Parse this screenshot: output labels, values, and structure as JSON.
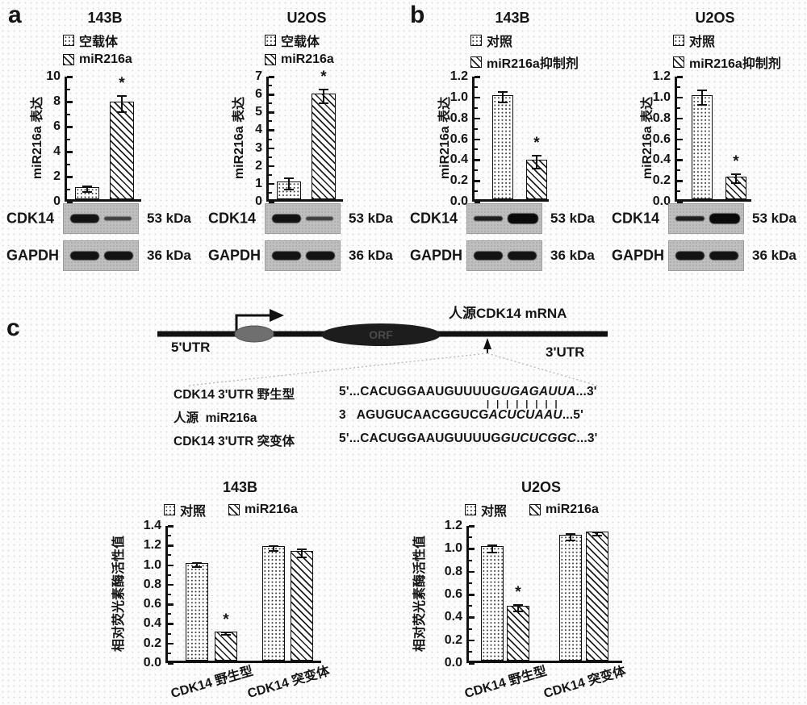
{
  "figure": {
    "panel_a": {
      "label": "a",
      "blots": [
        {
          "rows": [
            {
              "protein": "CDK14",
              "kda": "53 kDa",
              "lanes": [
                "strong",
                "weak"
              ]
            },
            {
              "protein": "GAPDH",
              "kda": "36 kDa",
              "lanes": [
                "strong",
                "strong"
              ]
            }
          ]
        },
        {
          "rows": [
            {
              "protein": "CDK14",
              "kda": "53 kDa",
              "lanes": [
                "strong",
                "weak"
              ]
            },
            {
              "protein": "GAPDH",
              "kda": "36 kDa",
              "lanes": [
                "strong",
                "strong"
              ]
            }
          ]
        }
      ]
    },
    "panel_b": {
      "label": "b",
      "blots": [
        {
          "rows": [
            {
              "protein": "CDK14",
              "kda": "53 kDa",
              "lanes": [
                "thin",
                "xstrong"
              ]
            },
            {
              "protein": "GAPDH",
              "kda": "36 kDa",
              "lanes": [
                "strong",
                "strong"
              ]
            }
          ]
        },
        {
          "rows": [
            {
              "protein": "CDK14",
              "kda": "53 kDa",
              "lanes": [
                "thin",
                "xstrong"
              ]
            },
            {
              "protein": "GAPDH",
              "kda": "36 kDa",
              "lanes": [
                "strong",
                "strong"
              ]
            }
          ]
        }
      ]
    },
    "panel_c": {
      "label": "c",
      "diagram": {
        "mrna_label": "人源CDK14 mRNA",
        "utr5": "5'UTR",
        "utr3": "3'UTR",
        "orf": "ORF"
      },
      "alignment": {
        "pairing": "||||||||",
        "rows": [
          {
            "name": "CDK14 3'UTR 野生型",
            "prefix": "5'...",
            "seq": "CACUGGAAUGUUUUG",
            "site": "UGAGAUUA",
            "suffix": "...3'"
          },
          {
            "name": "人源  miR216a",
            "prefix": "3   ",
            "seq": "AGUGUCAACGGUCG",
            "site": "ACUCUAAU",
            "suffix": "...5'"
          },
          {
            "name": "CDK14 3'UTR 突变体",
            "prefix": "5'...",
            "seq": "CACUGGAAUGUUUUG",
            "site": "GUCUCGGC",
            "suffix": "...3'"
          }
        ]
      }
    }
  },
  "chart_data": [
    {
      "id": "a-143B",
      "type": "bar",
      "title": "143B",
      "ylabel": "miR216a 表达",
      "ymax": 10,
      "yticks": [
        "10",
        "8",
        "6",
        "4",
        "2",
        "0"
      ],
      "grid": false,
      "legend_position": "top",
      "legend": [
        {
          "label": "空载体",
          "pattern": "dots"
        },
        {
          "label": "miR216a",
          "pattern": "hatch"
        }
      ],
      "groups": [
        {
          "label": "",
          "bars": [
            {
              "series": "空载体",
              "value": 1.0,
              "err": 0.2,
              "pattern": "dots"
            },
            {
              "series": "miR216a",
              "value": 7.8,
              "err": 0.65,
              "pattern": "hatch",
              "sig": "*"
            }
          ]
        }
      ]
    },
    {
      "id": "a-U2OS",
      "type": "bar",
      "title": "U2OS",
      "ylabel": "miR216a 表达",
      "ymax": 7,
      "yticks": [
        "7",
        "6",
        "5",
        "4",
        "3",
        "2",
        "1",
        "0"
      ],
      "grid": false,
      "legend_position": "top",
      "legend": [
        {
          "label": "空载体",
          "pattern": "dots"
        },
        {
          "label": "miR216a",
          "pattern": "hatch"
        }
      ],
      "groups": [
        {
          "label": "",
          "bars": [
            {
              "series": "空载体",
              "value": 1.0,
              "err": 0.3,
              "pattern": "dots"
            },
            {
              "series": "miR216a",
              "value": 5.9,
              "err": 0.4,
              "pattern": "hatch",
              "sig": "*"
            }
          ]
        }
      ]
    },
    {
      "id": "b-143B",
      "type": "bar",
      "title": "143B",
      "ylabel": "miR216a 表达",
      "ymax": 1.2,
      "yticks": [
        "1.2",
        "1.0",
        "0.8",
        "0.6",
        "0.4",
        "0.2",
        "0.0"
      ],
      "grid": false,
      "legend_position": "top",
      "legend": [
        {
          "label": "对照",
          "pattern": "dots"
        },
        {
          "label": "miR216a抑制剂",
          "pattern": "hatch"
        }
      ],
      "groups": [
        {
          "label": "",
          "bars": [
            {
              "series": "对照",
              "value": 1.0,
              "err": 0.05,
              "pattern": "dots"
            },
            {
              "series": "miR216a抑制剂",
              "value": 0.38,
              "err": 0.06,
              "pattern": "hatch",
              "sig": "*"
            }
          ]
        }
      ]
    },
    {
      "id": "b-U2OS",
      "type": "bar",
      "title": "U2OS",
      "ylabel": "miR216a 表达",
      "ymax": 1.2,
      "yticks": [
        "1.2",
        "1.0",
        "0.8",
        "0.6",
        "0.4",
        "0.2",
        "0.0"
      ],
      "grid": false,
      "legend_position": "top",
      "legend": [
        {
          "label": "对照",
          "pattern": "dots"
        },
        {
          "label": "miR216a抑制剂",
          "pattern": "hatch"
        }
      ],
      "groups": [
        {
          "label": "",
          "bars": [
            {
              "series": "对照",
              "value": 1.0,
              "err": 0.07,
              "pattern": "dots"
            },
            {
              "series": "miR216a抑制剂",
              "value": 0.22,
              "err": 0.04,
              "pattern": "hatch",
              "sig": "*"
            }
          ]
        }
      ]
    },
    {
      "id": "c-143B",
      "type": "bar",
      "title": "143B",
      "ylabel": "相对荧光素酶活性值",
      "ymax": 1.4,
      "yticks": [
        "1.4",
        "1.2",
        "1.0",
        "0.8",
        "0.6",
        "0.4",
        "0.2",
        "0.0"
      ],
      "grid": false,
      "legend_position": "top",
      "legend": [
        {
          "label": "对照",
          "pattern": "dots"
        },
        {
          "label": "miR216a",
          "pattern": "hatch"
        }
      ],
      "groups": [
        {
          "label": "CDK14 野生型",
          "bars": [
            {
              "series": "对照",
              "value": 1.0,
              "err": 0.02,
              "pattern": "dots"
            },
            {
              "series": "miR216a",
              "value": 0.3,
              "err": 0.015,
              "pattern": "hatch",
              "sig": "*"
            }
          ]
        },
        {
          "label": "CDK14 突变体",
          "bars": [
            {
              "series": "对照",
              "value": 1.17,
              "err": 0.025,
              "pattern": "dots"
            },
            {
              "series": "miR216a",
              "value": 1.12,
              "err": 0.04,
              "pattern": "hatch"
            }
          ]
        }
      ]
    },
    {
      "id": "c-U2OS",
      "type": "bar",
      "title": "U2OS",
      "ylabel": "相对荧光素酶活性值",
      "ymax": 1.2,
      "yticks": [
        "1.2",
        "1.0",
        "0.8",
        "0.6",
        "0.4",
        "0.2",
        "0.0"
      ],
      "grid": false,
      "legend_position": "top",
      "legend": [
        {
          "label": "对照",
          "pattern": "dots"
        },
        {
          "label": "miR216a",
          "pattern": "hatch"
        }
      ],
      "groups": [
        {
          "label": "CDK14 野生型",
          "bars": [
            {
              "series": "对照",
              "value": 1.0,
              "err": 0.03,
              "pattern": "dots"
            },
            {
              "series": "miR216a",
              "value": 0.48,
              "err": 0.03,
              "pattern": "hatch",
              "sig": "*"
            }
          ]
        },
        {
          "label": "CDK14 突变体",
          "bars": [
            {
              "series": "对照",
              "value": 1.1,
              "err": 0.03,
              "pattern": "dots"
            },
            {
              "series": "miR216a",
              "value": 1.13,
              "err": 0.012,
              "pattern": "hatch"
            }
          ]
        }
      ]
    }
  ]
}
